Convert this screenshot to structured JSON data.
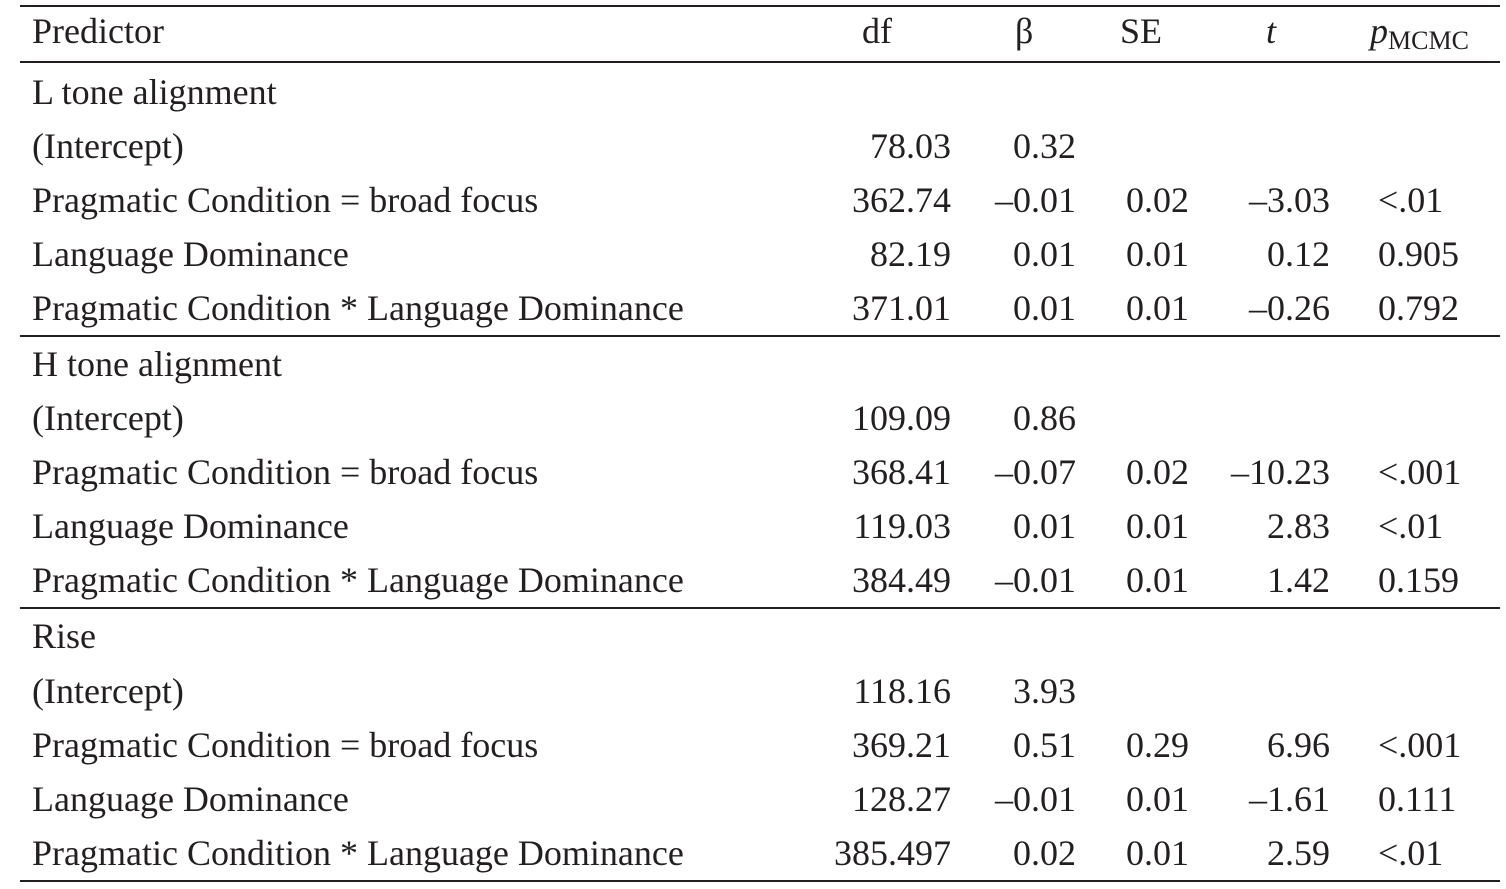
{
  "header": {
    "predictor": "Predictor",
    "df": "df",
    "beta": "β",
    "se": "SE",
    "t": "t",
    "p_main": "p",
    "p_sub": "MCMC"
  },
  "sections": [
    {
      "title": "L tone alignment",
      "rows": [
        {
          "predictor": "(Intercept)",
          "df": "78.03",
          "beta": "0.32",
          "se": "",
          "t": "",
          "p": ""
        },
        {
          "predictor": "Pragmatic Condition = broad focus",
          "df": "362.74",
          "beta": "–0.01",
          "se": "0.02",
          "t": "–3.03",
          "p": "<.01"
        },
        {
          "predictor": "Language Dominance",
          "df": "82.19",
          "beta": "0.01",
          "se": "0.01",
          "t": "0.12",
          "p": "0.905"
        },
        {
          "predictor": "Pragmatic Condition * Language Dominance",
          "df": "371.01",
          "beta": "0.01",
          "se": "0.01",
          "t": "–0.26",
          "p": "0.792"
        }
      ]
    },
    {
      "title": "H tone alignment",
      "rows": [
        {
          "predictor": "(Intercept)",
          "df": "109.09",
          "beta": "0.86",
          "se": "",
          "t": "",
          "p": ""
        },
        {
          "predictor": "Pragmatic Condition = broad focus",
          "df": "368.41",
          "beta": "–0.07",
          "se": "0.02",
          "t": "–10.23",
          "p": "<.001"
        },
        {
          "predictor": "Language Dominance",
          "df": "119.03",
          "beta": "0.01",
          "se": "0.01",
          "t": "2.83",
          "p": "<.01"
        },
        {
          "predictor": "Pragmatic Condition * Language Dominance",
          "df": "384.49",
          "beta": "–0.01",
          "se": "0.01",
          "t": "1.42",
          "p": "0.159"
        }
      ]
    },
    {
      "title": "Rise",
      "rows": [
        {
          "predictor": "(Intercept)",
          "df": "118.16",
          "beta": "3.93",
          "se": "",
          "t": "",
          "p": ""
        },
        {
          "predictor": "Pragmatic Condition = broad focus",
          "df": "369.21",
          "beta": "0.51",
          "se": "0.29",
          "t": "6.96",
          "p": "<.001"
        },
        {
          "predictor": "Language Dominance",
          "df": "128.27",
          "beta": "–0.01",
          "se": "0.01",
          "t": "–1.61",
          "p": "0.111"
        },
        {
          "predictor": "Pragmatic Condition * Language Dominance",
          "df": "385.497",
          "beta": "0.02",
          "se": "0.01",
          "t": "2.59",
          "p": "<.01"
        }
      ]
    }
  ]
}
